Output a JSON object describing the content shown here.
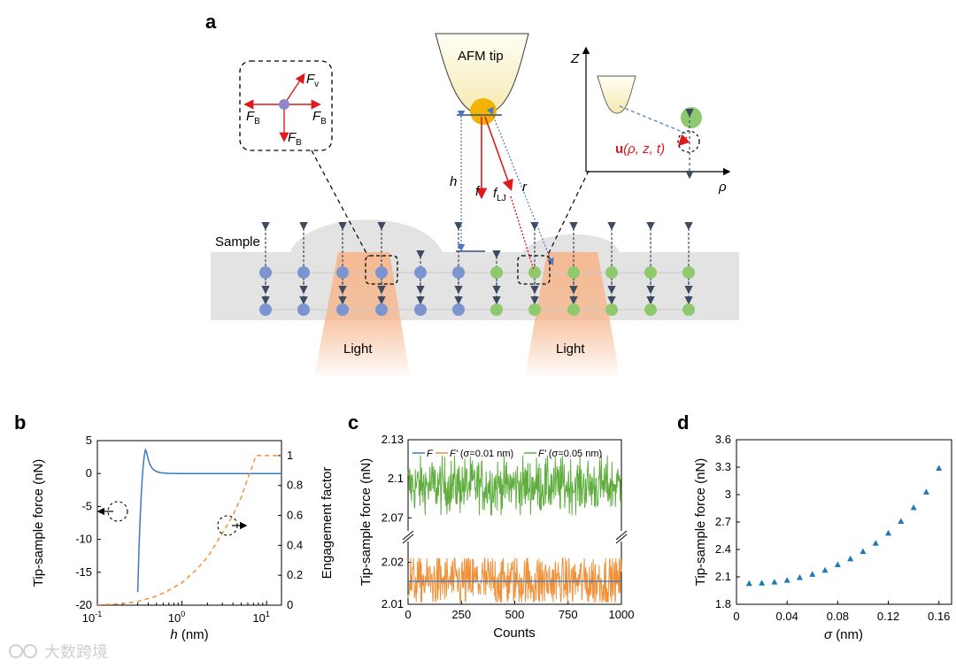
{
  "panel_a": {
    "letter": "a",
    "sample_label": "Sample",
    "light_label_left": "Light",
    "light_label_right": "Light",
    "tip_label": "AFM tip",
    "force_labels": {
      "f": "f",
      "f_lj": "f",
      "f_lj_sub": "LJ",
      "h": "h",
      "r": "r"
    },
    "inset_forces": {
      "F": "F",
      "v": "v",
      "B": "B"
    },
    "coord_axes": {
      "z": "Z",
      "rho": "ρ"
    },
    "displacement": {
      "u": "u",
      "args": "(ρ, z, t)"
    },
    "colors": {
      "blue_atom": "#7c95d1",
      "green_atom": "#8ec96d",
      "tip_ball": "#f3b400",
      "light": "#f6b88f",
      "arrow_red": "#e0191d",
      "arrow_dark": "#3d4a62"
    }
  },
  "chart_data": [
    {
      "panel": "b",
      "type": "line",
      "xscale": "log",
      "xlabel_var": "h",
      "xlabel_unit": "(nm)",
      "ylabel": "Tip-sample force (nN)",
      "y2label": "Engagement factor",
      "xlim": [
        0.1,
        15
      ],
      "ylim": [
        -20,
        5
      ],
      "y2lim": [
        0,
        1.1
      ],
      "xticks": [
        "10",
        "10",
        "10"
      ],
      "xtick_exps": [
        "-1",
        "0",
        "1"
      ],
      "yticks": [
        "5",
        "0",
        "-5",
        "-10",
        "-15",
        "-20"
      ],
      "y2ticks": [
        "1",
        "0.8",
        "0.6",
        "0.4",
        "0.2",
        "0"
      ],
      "series": [
        {
          "name": "Tip-sample force",
          "color": "#3a78c2",
          "x": [
            0.3,
            0.31,
            0.32,
            0.33,
            0.34,
            0.35,
            0.36,
            0.37,
            0.38,
            0.39,
            0.4,
            0.42,
            0.45,
            0.5,
            0.55,
            0.6,
            0.7,
            0.8,
            1,
            2,
            5,
            15
          ],
          "y": [
            -18,
            -11.5,
            -6.8,
            -3.2,
            -0.5,
            1.5,
            2.9,
            3.6,
            3.3,
            2.7,
            2.1,
            1.3,
            0.7,
            0.3,
            0.15,
            0.08,
            0.03,
            0.01,
            0,
            0,
            0,
            0
          ]
        },
        {
          "name": "Engagement factor",
          "color": "#f0913a",
          "axis": "right",
          "dashed": true,
          "x": [
            0.1,
            0.2,
            0.3,
            0.5,
            0.7,
            1,
            1.5,
            2,
            3,
            4,
            5,
            6,
            7,
            7.5,
            10,
            15
          ],
          "y": [
            0.002,
            0.01,
            0.025,
            0.06,
            0.1,
            0.15,
            0.24,
            0.32,
            0.48,
            0.6,
            0.72,
            0.85,
            0.95,
            1.0,
            1.0,
            1.0
          ]
        }
      ]
    },
    {
      "panel": "c",
      "type": "line",
      "xlabel": "Counts",
      "ylabel": "Tip-sample force (nN)",
      "xlim": [
        0,
        1000
      ],
      "upper_ylim": [
        2.06,
        2.13
      ],
      "lower_ylim": [
        2.01,
        2.025
      ],
      "xticks": [
        "0",
        "250",
        "500",
        "750",
        "1000"
      ],
      "upper_yticks": [
        "2.13",
        "2.1",
        "2.07"
      ],
      "lower_yticks": [
        "2.02",
        "2.01"
      ],
      "series": [
        {
          "name": "F",
          "legend_sym": "F",
          "legend_extra": "",
          "color": "#3a78c2",
          "value": 2.0155,
          "noise": 0
        },
        {
          "name": "F' (σ=0.01 nm)",
          "legend_sym": "F'",
          "legend_extra": "(σ=0.01 nm)",
          "color": "#f0913a",
          "value": 2.0155,
          "noise": 0.0035
        },
        {
          "name": "F' (σ=0.05 nm)",
          "legend_sym": "F'",
          "legend_extra": "(σ=0.05 nm)",
          "color": "#5fae3f",
          "value": 2.0948,
          "noise": 0.011
        }
      ]
    },
    {
      "panel": "d",
      "type": "scatter",
      "xlabel_var": "σ",
      "xlabel_unit": "(nm)",
      "ylabel": "Tip-sample force (nN)",
      "xlim": [
        0,
        0.17
      ],
      "ylim": [
        1.8,
        3.6
      ],
      "xticks": [
        "0",
        "0.04",
        "0.08",
        "0.12",
        "0.16"
      ],
      "yticks": [
        "3.6",
        "3.3",
        "3",
        "2.7",
        "2.4",
        "2.1",
        "1.8"
      ],
      "marker_color": "#1f77b4",
      "x": [
        0.01,
        0.02,
        0.03,
        0.04,
        0.05,
        0.06,
        0.07,
        0.08,
        0.09,
        0.1,
        0.11,
        0.12,
        0.13,
        0.14,
        0.15,
        0.16
      ],
      "y": [
        2.03,
        2.035,
        2.045,
        2.065,
        2.095,
        2.13,
        2.175,
        2.235,
        2.3,
        2.38,
        2.47,
        2.58,
        2.71,
        2.86,
        3.03,
        3.29
      ]
    }
  ],
  "watermark": "大数跨境"
}
